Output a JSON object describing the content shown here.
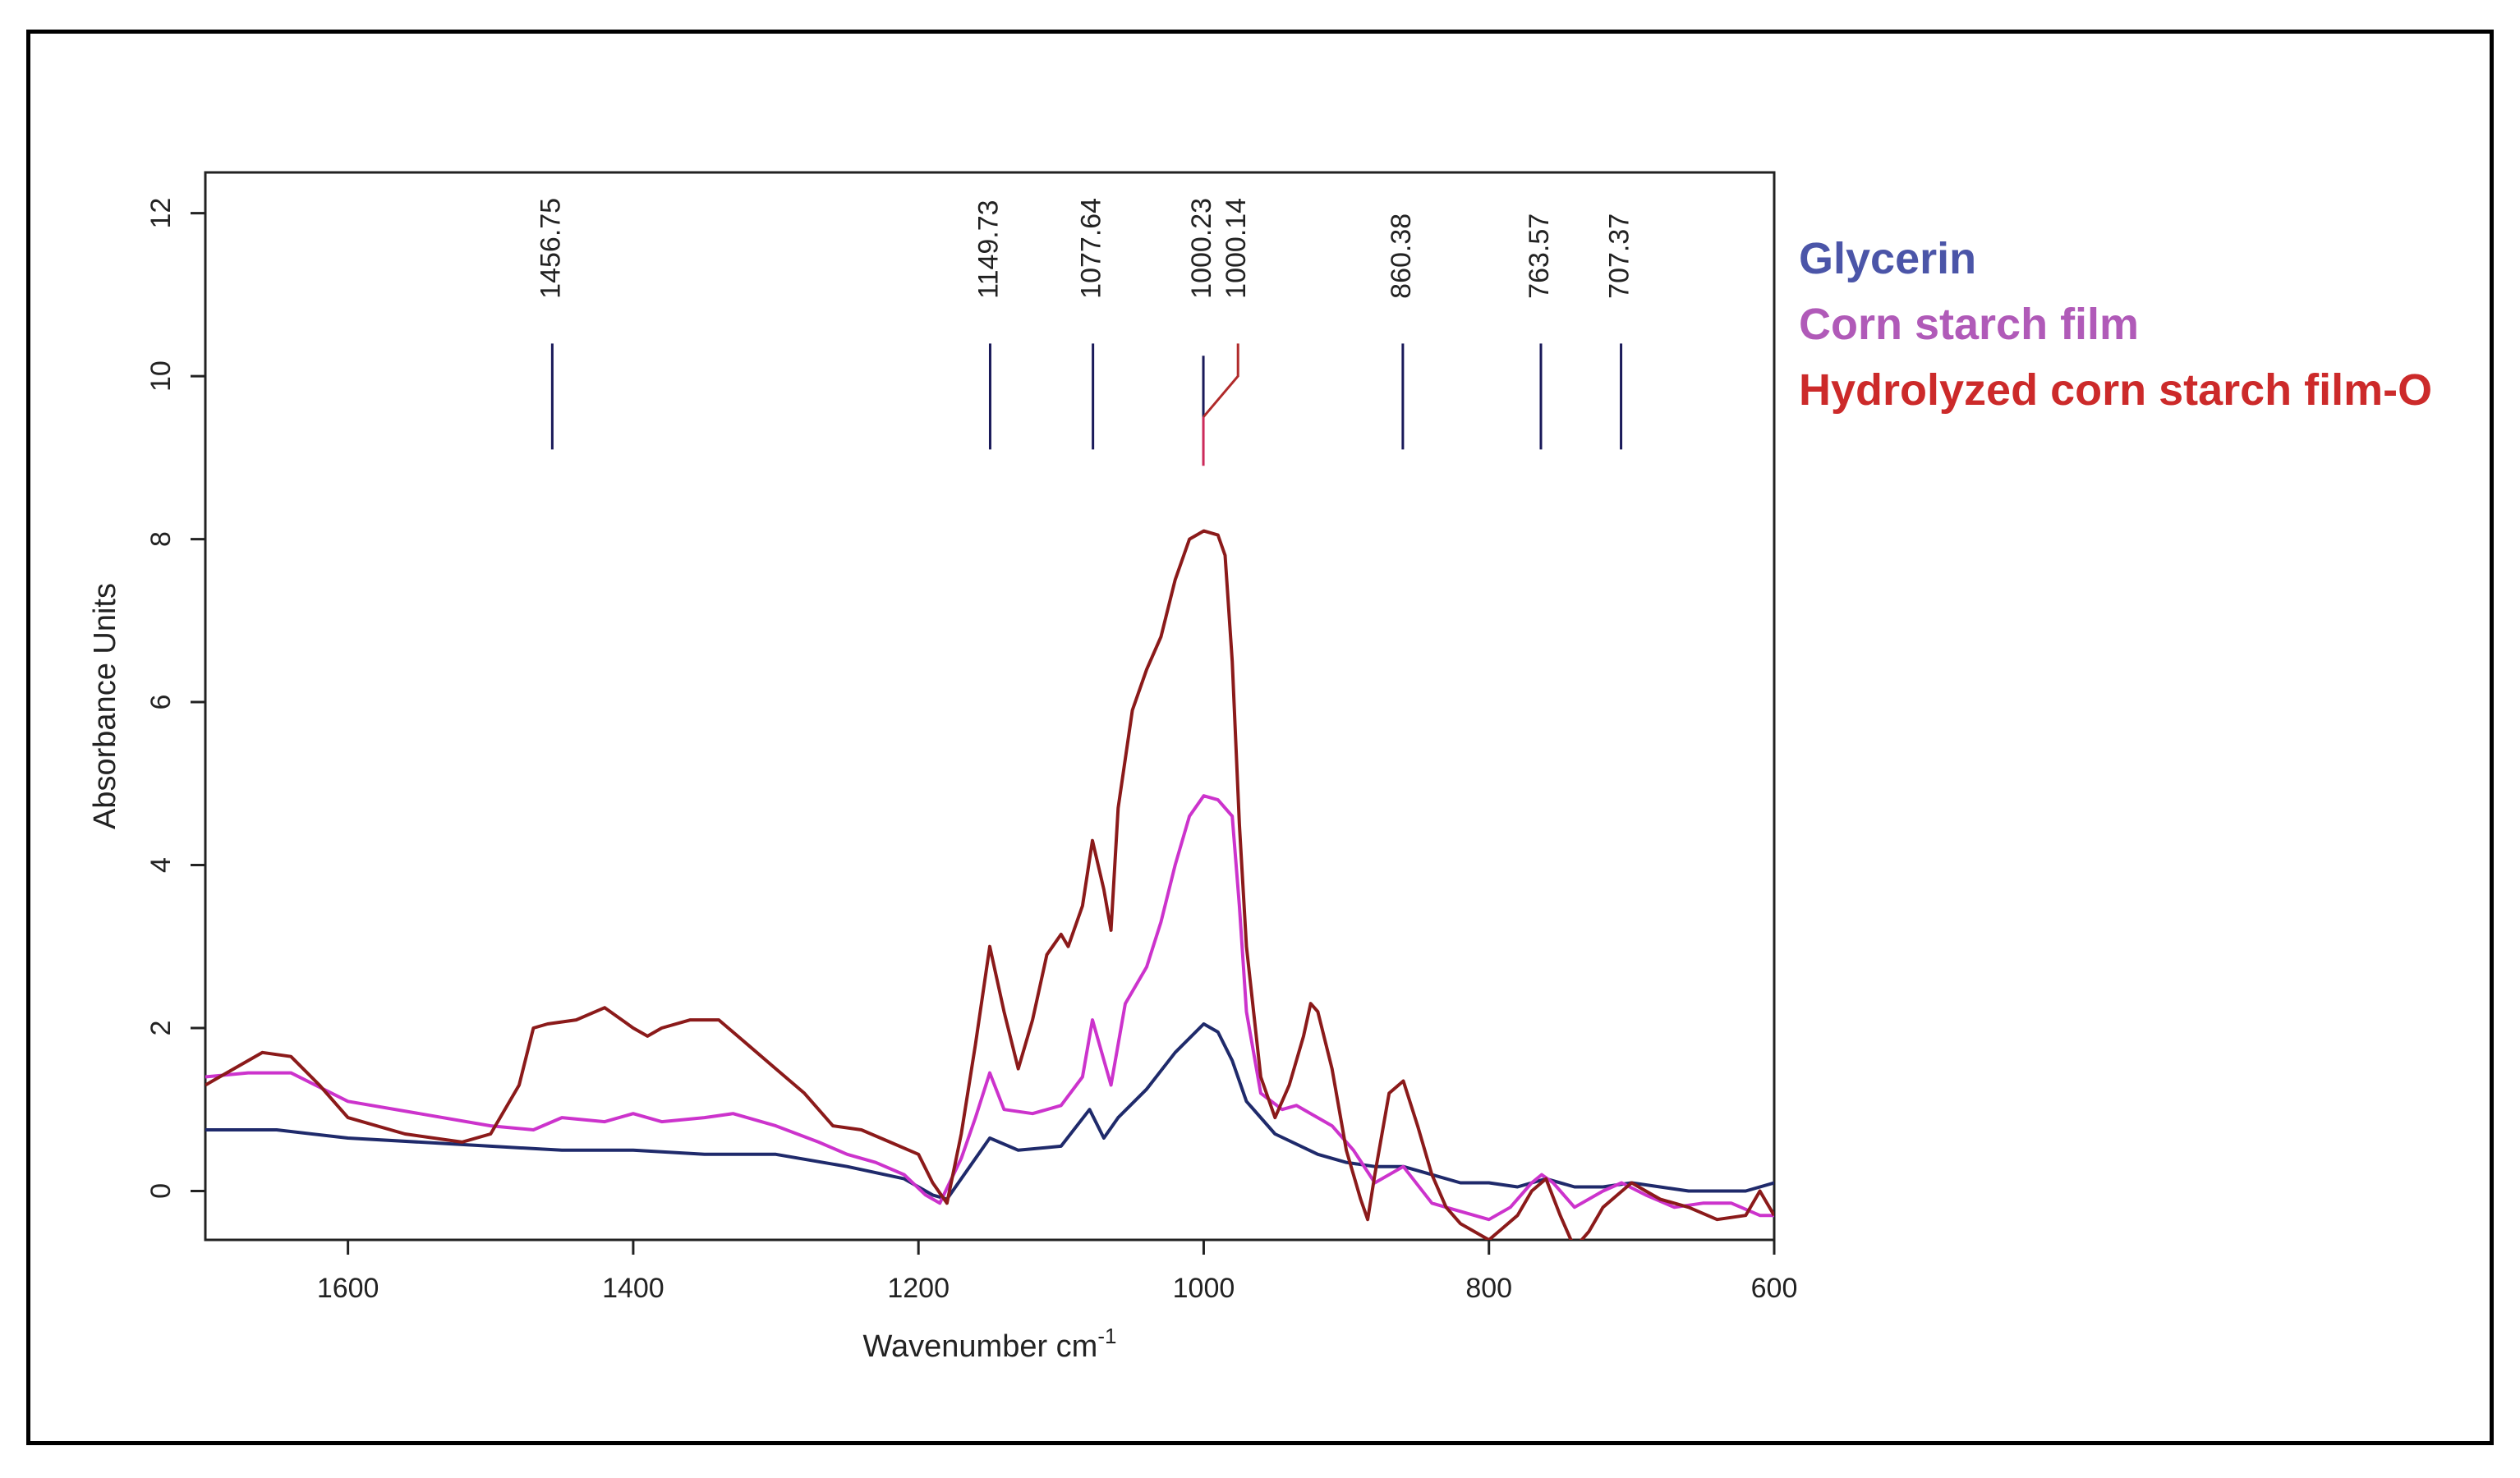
{
  "chart_data": {
    "type": "line",
    "title": "",
    "xlabel": "Wavenumber cm",
    "xlabel_superscript": "-1",
    "ylabel": "Absorbance Units",
    "xlim": [
      1700,
      600
    ],
    "ylim": [
      -0.6,
      12.5
    ],
    "xticks": [
      1600,
      1400,
      1200,
      1000,
      800,
      600
    ],
    "yticks": [
      0,
      2,
      4,
      6,
      8,
      10,
      12
    ],
    "legend_position": "right",
    "colors": {
      "glycerin": "#1f2a6b",
      "corn_starch": "#cc33cc",
      "hydrolyzed": "#8b1a1a",
      "marker": "#1a1a5a",
      "legend_glycerin": "#4b55a8",
      "legend_corn": "#b05ab8",
      "legend_hydrolyzed": "#cc2a2a"
    },
    "peak_labels": [
      {
        "label": "1456.75",
        "x": 1456.75
      },
      {
        "label": "1149.73",
        "x": 1149.73
      },
      {
        "label": "1077.64",
        "x": 1077.64
      },
      {
        "label": "1000.23",
        "x": 1000.23
      },
      {
        "label": "1000.14",
        "x": 1000.14
      },
      {
        "label": "860.38",
        "x": 860.38
      },
      {
        "label": "763.57",
        "x": 763.57
      },
      {
        "label": "707.37",
        "x": 707.37
      }
    ],
    "series": [
      {
        "name": "Glycerin",
        "x": [
          1700,
          1650,
          1600,
          1550,
          1500,
          1450,
          1400,
          1350,
          1300,
          1250,
          1210,
          1190,
          1180,
          1160,
          1150,
          1130,
          1100,
          1080,
          1070,
          1060,
          1040,
          1020,
          1000,
          990,
          980,
          970,
          950,
          920,
          900,
          880,
          860,
          840,
          820,
          800,
          780,
          760,
          740,
          720,
          700,
          680,
          660,
          640,
          620,
          600
        ],
        "y": [
          0.75,
          0.75,
          0.65,
          0.6,
          0.55,
          0.5,
          0.5,
          0.45,
          0.45,
          0.3,
          0.15,
          -0.05,
          -0.1,
          0.4,
          0.65,
          0.5,
          0.55,
          1.0,
          0.65,
          0.9,
          1.25,
          1.7,
          2.05,
          1.95,
          1.6,
          1.1,
          0.7,
          0.45,
          0.35,
          0.3,
          0.3,
          0.2,
          0.1,
          0.1,
          0.05,
          0.15,
          0.05,
          0.05,
          0.1,
          0.05,
          0.0,
          0.0,
          0.0,
          0.1
        ]
      },
      {
        "name": "Corn starch film",
        "x": [
          1700,
          1670,
          1640,
          1600,
          1550,
          1500,
          1470,
          1450,
          1420,
          1400,
          1380,
          1350,
          1330,
          1300,
          1270,
          1250,
          1230,
          1210,
          1195,
          1185,
          1170,
          1160,
          1150,
          1140,
          1120,
          1100,
          1085,
          1078,
          1065,
          1055,
          1040,
          1030,
          1020,
          1010,
          1000,
          990,
          980,
          975,
          970,
          960,
          945,
          935,
          925,
          910,
          895,
          880,
          860,
          840,
          820,
          800,
          785,
          770,
          763,
          755,
          740,
          720,
          707,
          690,
          670,
          650,
          630,
          610,
          600
        ],
        "y": [
          1.4,
          1.45,
          1.45,
          1.1,
          0.95,
          0.8,
          0.75,
          0.9,
          0.85,
          0.95,
          0.85,
          0.9,
          0.95,
          0.8,
          0.6,
          0.45,
          0.35,
          0.2,
          -0.05,
          -0.15,
          0.4,
          0.9,
          1.45,
          1.0,
          0.95,
          1.05,
          1.4,
          2.1,
          1.3,
          2.3,
          2.75,
          3.3,
          4.0,
          4.6,
          4.85,
          4.8,
          4.6,
          3.5,
          2.2,
          1.2,
          1.0,
          1.05,
          0.95,
          0.8,
          0.5,
          0.1,
          0.3,
          -0.15,
          -0.25,
          -0.35,
          -0.2,
          0.1,
          0.2,
          0.1,
          -0.2,
          0.0,
          0.1,
          -0.05,
          -0.2,
          -0.15,
          -0.15,
          -0.3,
          -0.3
        ]
      },
      {
        "name": "Hydrolyzed corn starch film-O",
        "x": [
          1700,
          1680,
          1660,
          1640,
          1620,
          1600,
          1560,
          1520,
          1500,
          1480,
          1470,
          1460,
          1440,
          1420,
          1400,
          1390,
          1380,
          1360,
          1340,
          1320,
          1300,
          1280,
          1260,
          1240,
          1220,
          1200,
          1190,
          1180,
          1170,
          1160,
          1150,
          1140,
          1130,
          1120,
          1110,
          1100,
          1095,
          1085,
          1078,
          1070,
          1065,
          1060,
          1050,
          1040,
          1030,
          1020,
          1010,
          1000,
          990,
          985,
          980,
          975,
          970,
          960,
          950,
          940,
          930,
          925,
          920,
          910,
          900,
          890,
          885,
          880,
          870,
          860,
          850,
          840,
          830,
          820,
          800,
          790,
          780,
          770,
          760,
          750,
          740,
          730,
          720,
          710,
          700,
          690,
          680,
          660,
          640,
          620,
          610,
          600
        ],
        "y": [
          1.3,
          1.5,
          1.7,
          1.65,
          1.3,
          0.9,
          0.7,
          0.6,
          0.7,
          1.3,
          2.0,
          2.05,
          2.1,
          2.25,
          2.0,
          1.9,
          2.0,
          2.1,
          2.1,
          1.8,
          1.5,
          1.2,
          0.8,
          0.75,
          0.6,
          0.45,
          0.1,
          -0.15,
          0.7,
          1.8,
          3.0,
          2.2,
          1.5,
          2.1,
          2.9,
          3.15,
          3.0,
          3.5,
          4.3,
          3.7,
          3.2,
          4.7,
          5.9,
          6.4,
          6.8,
          7.5,
          8.0,
          8.1,
          8.05,
          7.8,
          6.5,
          4.5,
          3.0,
          1.4,
          0.9,
          1.3,
          1.9,
          2.3,
          2.2,
          1.5,
          0.5,
          -0.1,
          -0.35,
          0.2,
          1.2,
          1.35,
          0.8,
          0.2,
          -0.2,
          -0.4,
          -0.6,
          -0.45,
          -0.3,
          0.0,
          0.15,
          -0.3,
          -0.7,
          -0.5,
          -0.2,
          -0.05,
          0.1,
          0.0,
          -0.1,
          -0.2,
          -0.35,
          -0.3,
          0.0,
          -0.3
        ]
      }
    ]
  }
}
